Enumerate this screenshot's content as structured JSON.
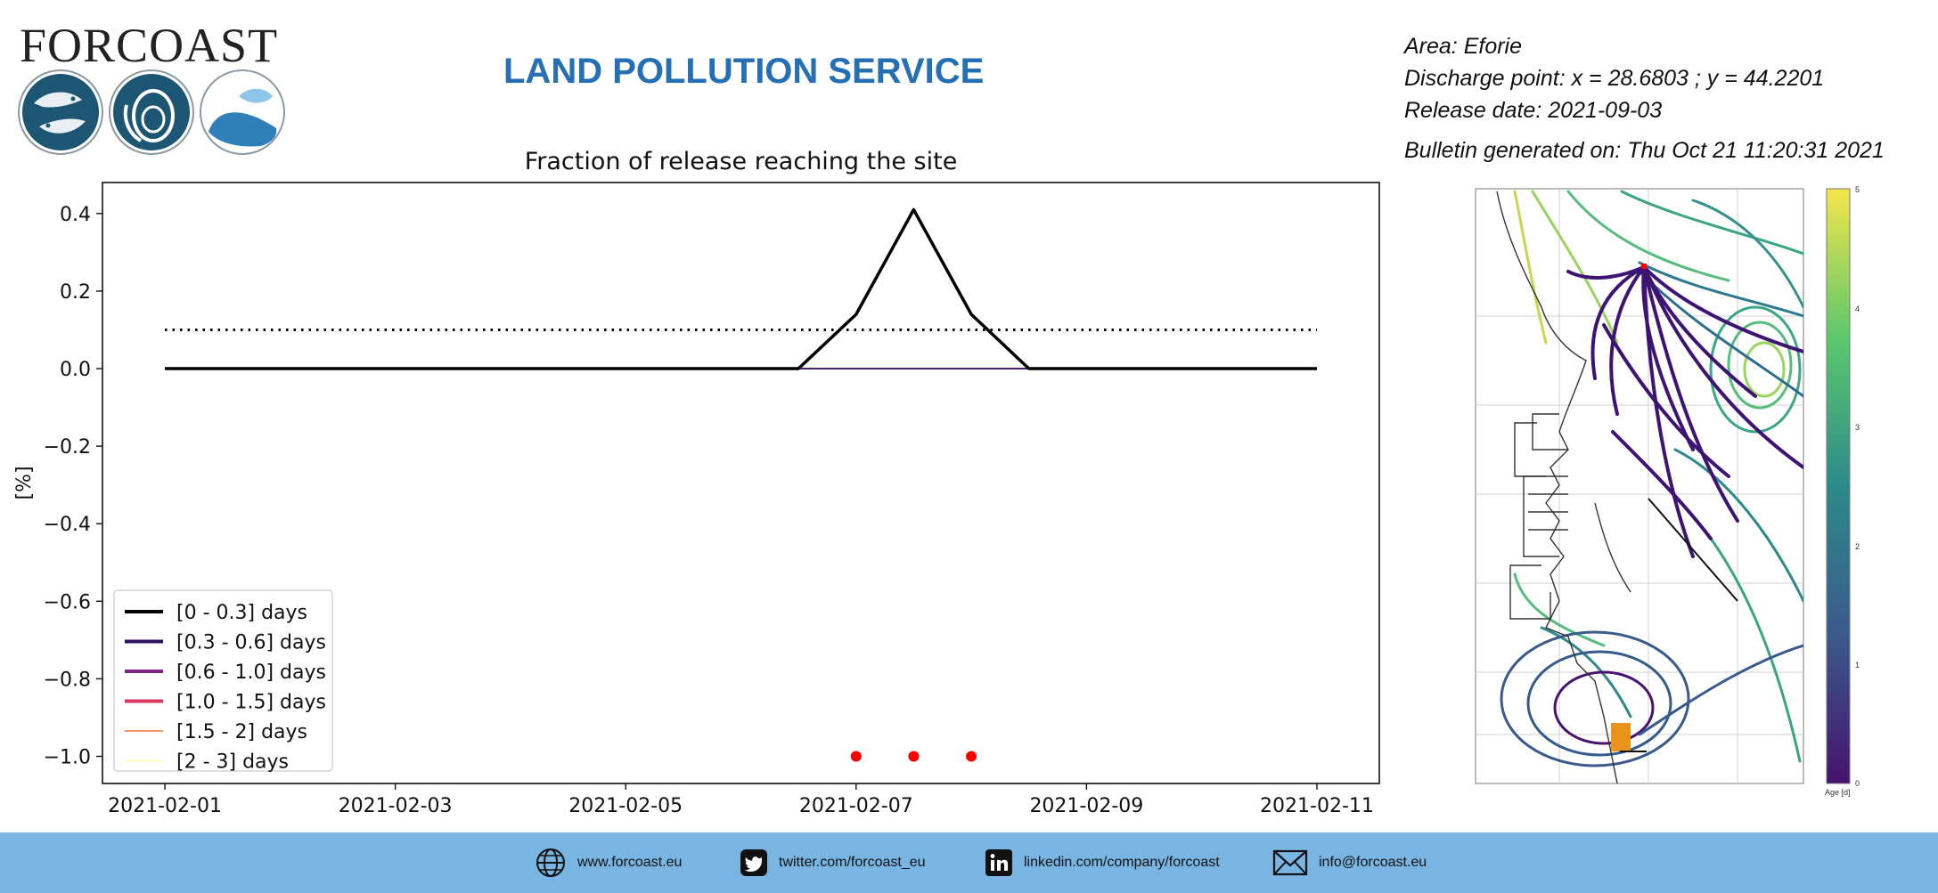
{
  "header": {
    "logo_text": "FORCOAST",
    "service_title": "LAND POLLUTION SERVICE",
    "area": "Area: Eforie",
    "discharge_point": "Discharge point: x = 28.6803 ; y = 44.2201",
    "release_date": "Release date: 2021-09-03",
    "bulletin_generated": "Bulletin generated on: Thu Oct 21 11:20:31 2021"
  },
  "chart_data": {
    "type": "line",
    "title": "Fraction of release reaching the site",
    "ylabel": "[%]",
    "xlabel": "",
    "ylim": [
      -1.07,
      0.48
    ],
    "xlim": [
      "2021-01-31T11:00",
      "2021-02-11T13:00"
    ],
    "yticks": [
      0.4,
      0.2,
      0.0,
      -0.2,
      -0.4,
      -0.6,
      -0.8,
      -1.0
    ],
    "ytick_labels": [
      "0.4",
      "0.2",
      "0.0",
      "−0.2",
      "−0.4",
      "−0.6",
      "−0.8",
      "−1.0"
    ],
    "xticks": [
      "2021-02-01",
      "2021-02-03",
      "2021-02-05",
      "2021-02-07",
      "2021-02-09",
      "2021-02-11"
    ],
    "grid": false,
    "legend_position": "lower-left",
    "series": [
      {
        "name": "[0 - 0.3] days",
        "color": "#000000",
        "x": [
          "2021-02-01T00:00",
          "2021-02-06T12:00",
          "2021-02-07T00:00",
          "2021-02-07T12:00",
          "2021-02-08T00:00",
          "2021-02-08T12:00",
          "2021-02-11T00:00"
        ],
        "y": [
          0.0,
          0.0,
          0.14,
          0.41,
          0.14,
          0.0,
          0.0
        ]
      },
      {
        "name": "[0.3 - 0.6] days",
        "color": "#2d0f63",
        "x": [
          "2021-02-01T00:00",
          "2021-02-11T00:00"
        ],
        "y": [
          0.0,
          0.0
        ]
      },
      {
        "name": "[0.6 - 1.0] days",
        "color": "#842585",
        "x": [
          "2021-02-01T00:00",
          "2021-02-11T00:00"
        ],
        "y": [
          0.0,
          0.0
        ]
      },
      {
        "name": "[1.0 - 1.5] days",
        "color": "#d9395e",
        "x": [
          "2021-02-01T00:00",
          "2021-02-11T00:00"
        ],
        "y": [
          0.0,
          0.0
        ]
      },
      {
        "name": "[1.5 - 2] days",
        "color": "#f7966c",
        "x": [
          "2021-02-01T00:00",
          "2021-02-11T00:00"
        ],
        "y": [
          0.0,
          0.0
        ]
      },
      {
        "name": "[2 - 3] days",
        "color": "#fcfdbf",
        "x": [
          "2021-02-01T00:00",
          "2021-02-11T00:00"
        ],
        "y": [
          0.0,
          0.0
        ]
      }
    ],
    "threshold": {
      "y": 0.1,
      "x": [
        "2021-02-01T00:00",
        "2021-02-11T00:00"
      ],
      "style": "dotted",
      "color": "#000000"
    },
    "markers": {
      "color": "#ff0000",
      "x": [
        "2021-02-07T00:00",
        "2021-02-07T12:00",
        "2021-02-08T00:00"
      ],
      "y": [
        -1.0,
        -1.0,
        -1.0
      ]
    }
  },
  "map": {
    "colorbar_label": "Age [d]",
    "colorbar_ticks": [
      "5",
      "4",
      "3",
      "2",
      "1",
      "0"
    ],
    "discharge_marker_color": "#ff0000",
    "site_box_color": "#e8941a"
  },
  "footer": {
    "background": "#79b5e2",
    "items": [
      {
        "icon": "globe-icon",
        "text": "www.forcoast.eu"
      },
      {
        "icon": "twitter-icon",
        "text": "twitter.com/forcoast_eu"
      },
      {
        "icon": "linkedin-icon",
        "text": "linkedin.com/company/forcoast"
      },
      {
        "icon": "mail-icon",
        "text": "info@forcoast.eu"
      }
    ]
  }
}
